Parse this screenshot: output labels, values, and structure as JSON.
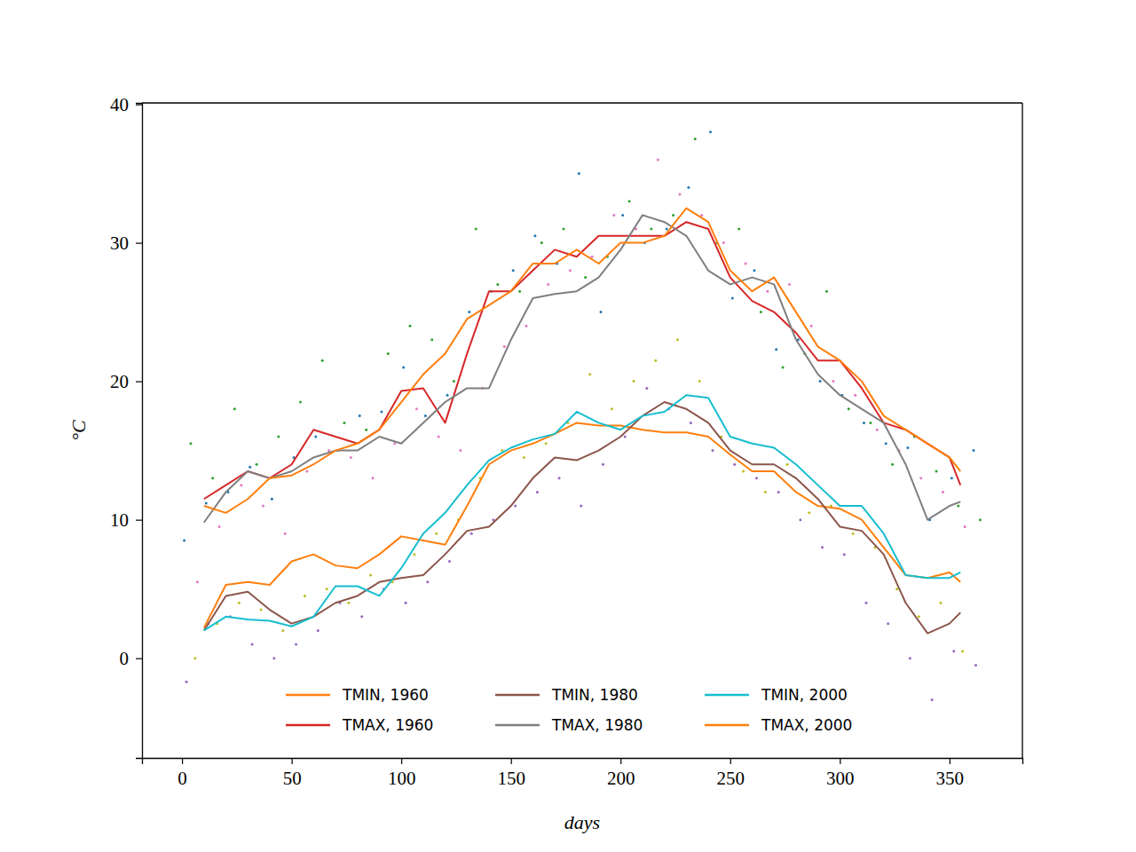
{
  "chart_data": {
    "type": "line",
    "xlabel": "days",
    "ylabel": "°C",
    "xlim": [
      -18.25,
      383.25
    ],
    "ylim": [
      -7.2,
      40.1
    ],
    "xticks": [
      0,
      50,
      100,
      150,
      200,
      250,
      300,
      350
    ],
    "yticks": [
      0,
      10,
      20,
      30,
      40
    ],
    "grid": false,
    "legend": "lower center",
    "series": [
      {
        "name": "TMIN, 1960",
        "type": "line",
        "color": "#ff7f0e",
        "x": [
          10,
          20,
          30,
          40,
          50,
          60,
          70,
          80,
          90,
          100,
          110,
          120,
          130,
          140,
          150,
          160,
          170,
          180,
          190,
          200,
          210,
          220,
          230,
          240,
          250,
          260,
          270,
          280,
          290,
          300,
          310,
          320,
          330,
          340,
          350,
          355
        ],
        "values": [
          2.2,
          5.3,
          5.5,
          5.3,
          7,
          7.5,
          6.7,
          6.5,
          7.5,
          8.8,
          8.5,
          8.2,
          11,
          14,
          15,
          15.5,
          16.2,
          17,
          16.8,
          16.8,
          16.5,
          16.3,
          16.3,
          16,
          14.7,
          13.5,
          13.5,
          12,
          11,
          10.8,
          10,
          8,
          6,
          5.8,
          6.2,
          5.5
        ]
      },
      {
        "name": "TMAX, 1960",
        "type": "line",
        "color": "#d62728",
        "x": [
          10,
          20,
          30,
          40,
          50,
          60,
          70,
          80,
          90,
          100,
          110,
          120,
          130,
          140,
          150,
          160,
          170,
          180,
          190,
          200,
          210,
          220,
          230,
          240,
          250,
          260,
          270,
          280,
          290,
          300,
          310,
          320,
          330,
          340,
          350,
          355
        ],
        "values": [
          11.5,
          12.5,
          13.5,
          13,
          14,
          16.5,
          16,
          15.5,
          16.5,
          19.3,
          19.5,
          17,
          22,
          26.5,
          26.5,
          28,
          29.5,
          29,
          30.5,
          30.5,
          30.5,
          30.5,
          31.5,
          31,
          27.5,
          25.8,
          25,
          23.5,
          21.5,
          21.5,
          19.5,
          17,
          16.5,
          15.5,
          14.5,
          12.5
        ]
      },
      {
        "name": "TMIN, 1980",
        "type": "line",
        "color": "#8c564b",
        "x": [
          10,
          20,
          30,
          40,
          50,
          60,
          70,
          80,
          90,
          100,
          110,
          120,
          130,
          140,
          150,
          160,
          170,
          180,
          190,
          200,
          210,
          220,
          230,
          240,
          250,
          260,
          270,
          280,
          290,
          300,
          310,
          320,
          330,
          340,
          350,
          355
        ],
        "values": [
          2,
          4.5,
          4.8,
          3.5,
          2.5,
          3,
          4,
          4.5,
          5.5,
          5.8,
          6,
          7.5,
          9.2,
          9.5,
          11,
          13,
          14.5,
          14.3,
          15,
          16,
          17.5,
          18.5,
          18,
          17,
          15,
          14,
          14,
          13,
          11.5,
          9.5,
          9.2,
          7.5,
          4,
          1.8,
          2.5,
          3.3
        ]
      },
      {
        "name": "TMAX, 1980",
        "type": "line",
        "color": "#7f7f7f",
        "x": [
          10,
          20,
          30,
          40,
          50,
          60,
          70,
          80,
          90,
          100,
          110,
          120,
          130,
          140,
          150,
          160,
          170,
          180,
          190,
          200,
          210,
          220,
          230,
          240,
          250,
          260,
          270,
          280,
          290,
          300,
          310,
          320,
          330,
          340,
          350,
          355
        ],
        "values": [
          9.8,
          12,
          13.5,
          13,
          13.5,
          14.5,
          15,
          15,
          16,
          15.5,
          17,
          18.5,
          19.5,
          19.5,
          23,
          26,
          26.3,
          26.5,
          27.5,
          29.5,
          32,
          31.5,
          30.5,
          28,
          27,
          27.5,
          27,
          23,
          20.5,
          19,
          18,
          17,
          14,
          10,
          11,
          11.3
        ]
      },
      {
        "name": "TMIN, 2000",
        "type": "line",
        "color": "#17becf",
        "x": [
          10,
          20,
          30,
          40,
          50,
          60,
          70,
          80,
          90,
          100,
          110,
          120,
          130,
          140,
          150,
          160,
          170,
          180,
          190,
          200,
          210,
          220,
          230,
          240,
          250,
          260,
          270,
          280,
          290,
          300,
          310,
          320,
          330,
          340,
          350,
          355
        ],
        "values": [
          2,
          3,
          2.8,
          2.7,
          2.3,
          3,
          5.2,
          5.2,
          4.5,
          6.5,
          9,
          10.5,
          12.5,
          14.3,
          15.2,
          15.8,
          16.2,
          17.8,
          17,
          16.5,
          17.5,
          17.8,
          19,
          18.8,
          16,
          15.5,
          15.2,
          14,
          12.5,
          11,
          11,
          9,
          6,
          5.8,
          5.8,
          6.2
        ]
      },
      {
        "name": "TMAX, 2000",
        "type": "line",
        "color": "#ff7f0e",
        "x": [
          10,
          20,
          30,
          40,
          50,
          60,
          70,
          80,
          90,
          100,
          110,
          120,
          130,
          140,
          150,
          160,
          170,
          180,
          190,
          200,
          210,
          220,
          230,
          240,
          250,
          260,
          270,
          280,
          290,
          300,
          310,
          320,
          330,
          340,
          350,
          355
        ],
        "values": [
          11,
          10.5,
          11.5,
          13,
          13.2,
          14,
          15,
          15.5,
          16.5,
          18.5,
          20.5,
          22,
          24.5,
          25.5,
          26.5,
          28.5,
          28.5,
          29.5,
          28.5,
          30,
          30,
          30.5,
          32.5,
          31.5,
          28,
          26.5,
          27.5,
          25,
          22.5,
          21.5,
          20,
          17.5,
          16.5,
          15.5,
          14.5,
          13.5
        ]
      },
      {
        "type": "scatter",
        "color": "#1f77b4",
        "x": [
          1,
          11,
          21,
          31,
          41,
          51,
          61,
          71,
          81,
          91,
          101,
          111,
          121,
          131,
          141,
          151,
          161,
          171,
          181,
          191,
          201,
          211,
          221,
          231,
          241,
          251,
          261,
          271,
          281,
          291,
          301,
          311,
          321,
          331,
          341,
          351,
          361
        ],
        "values": [
          8.5,
          11.2,
          12,
          13.8,
          11.5,
          14.5,
          16,
          15,
          17.5,
          17.8,
          21,
          17.5,
          19,
          25,
          26.5,
          28,
          30.5,
          28.5,
          35,
          25,
          32,
          30,
          31,
          34,
          38,
          26,
          28,
          22.3,
          23,
          20,
          19,
          17,
          15.5,
          15.2,
          10,
          13,
          15
        ]
      },
      {
        "type": "scatter",
        "color": "#2ca02c",
        "x": [
          4,
          14,
          24,
          34,
          44,
          54,
          64,
          74,
          84,
          94,
          104,
          114,
          124,
          134,
          144,
          154,
          164,
          174,
          184,
          194,
          204,
          214,
          224,
          234,
          244,
          254,
          264,
          274,
          284,
          294,
          304,
          314,
          324,
          334,
          344,
          354,
          364
        ],
        "values": [
          15.5,
          13,
          18,
          14,
          16,
          18.5,
          21.5,
          17,
          16.5,
          22,
          24,
          23,
          20,
          31,
          27,
          26.5,
          30,
          31,
          27.5,
          29,
          33,
          31,
          32,
          37.5,
          30,
          31,
          25,
          21,
          22,
          26.5,
          18,
          17,
          14,
          16,
          13.5,
          11,
          10
        ]
      },
      {
        "type": "scatter",
        "color": "#e377c2",
        "x": [
          7,
          17,
          27,
          37,
          47,
          57,
          67,
          77,
          87,
          97,
          107,
          117,
          127,
          137,
          147,
          157,
          167,
          177,
          187,
          197,
          207,
          217,
          227,
          237,
          247,
          257,
          267,
          277,
          287,
          297,
          307,
          317,
          327,
          337,
          347,
          357
        ],
        "values": [
          5.5,
          9.5,
          12.5,
          11,
          9,
          13.5,
          15,
          14.5,
          13,
          15.5,
          18,
          16,
          15,
          19.5,
          22.5,
          24,
          27,
          28,
          29,
          32,
          31,
          36,
          33.5,
          32,
          30,
          28.5,
          26.5,
          27,
          24,
          20,
          19,
          16.5,
          15,
          13,
          12,
          9.5
        ]
      },
      {
        "type": "scatter",
        "color": "#9467bd",
        "x": [
          2,
          12,
          22,
          32,
          42,
          52,
          62,
          72,
          82,
          92,
          102,
          112,
          122,
          132,
          142,
          152,
          162,
          172,
          182,
          192,
          202,
          212,
          222,
          232,
          242,
          252,
          262,
          272,
          282,
          292,
          302,
          312,
          322,
          332,
          342,
          352,
          362
        ],
        "values": [
          -1.7,
          2.5,
          3,
          1,
          0,
          1,
          2,
          4,
          3,
          5,
          4,
          5.5,
          7,
          9,
          10,
          11,
          12,
          13,
          11,
          14,
          16,
          19.5,
          18,
          17,
          15,
          14,
          13,
          12,
          10,
          8,
          7.5,
          4,
          2.5,
          0,
          -3,
          0.5,
          -0.5
        ]
      },
      {
        "type": "scatter",
        "color": "#bcbd22",
        "x": [
          6,
          16,
          26,
          36,
          46,
          56,
          66,
          76,
          86,
          96,
          106,
          116,
          126,
          136,
          146,
          156,
          166,
          176,
          186,
          196,
          206,
          216,
          226,
          236,
          246,
          256,
          266,
          276,
          286,
          296,
          306,
          316,
          326,
          336,
          346,
          356
        ],
        "values": [
          0,
          2.5,
          4,
          3.5,
          2,
          4.5,
          5,
          4,
          6,
          5.5,
          7.5,
          9,
          10,
          13,
          15,
          14.5,
          15.5,
          17,
          20.5,
          18,
          20,
          21.5,
          23,
          20,
          16,
          13.5,
          12,
          14,
          10.5,
          11,
          9,
          8,
          5,
          3,
          4,
          0.5
        ]
      }
    ]
  }
}
